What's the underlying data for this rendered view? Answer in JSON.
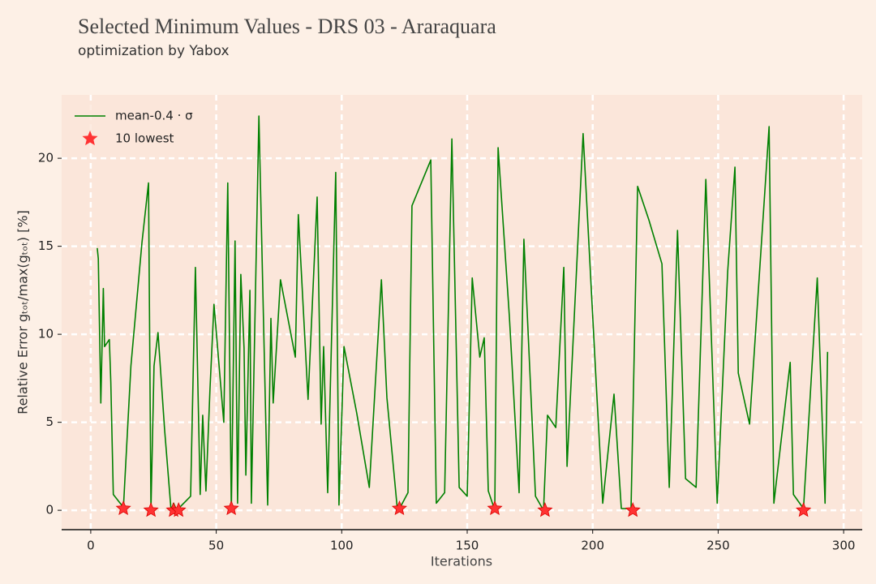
{
  "chart_data": {
    "type": "line",
    "title": "Selected Minimum Values - DRS 03 - Araraquara",
    "subtitle": "optimization by Yabox",
    "x_label": "Iterations",
    "y_label": "Relative Error gₜₒₜ/max(gₜₒₜ) [%]",
    "xlim": [
      -11.6,
      307.4
    ],
    "ylim": [
      -1.1,
      23.6
    ],
    "xticks": [
      0,
      50,
      100,
      150,
      200,
      250,
      300
    ],
    "yticks": [
      0,
      5,
      10,
      15,
      20
    ],
    "grid": true,
    "legend": "upper left",
    "series": [
      {
        "name": "mean-0.4 · σ",
        "type": "line",
        "color": "#008000",
        "x": [
          2.6,
          3,
          4,
          5,
          5.5,
          7.4,
          8,
          9,
          12.3,
          13,
          16,
          20.4,
          23,
          24,
          25.2,
          26.8,
          29.4,
          32,
          33,
          34.3,
          39.8,
          41.7,
          43.6,
          44.6,
          45.9,
          47.5,
          49.1,
          53,
          54.6,
          56,
          57.5,
          58.5,
          59.8,
          61.1,
          61.8,
          63.4,
          64,
          67,
          70.5,
          71.8,
          72.7,
          75.6,
          81.5,
          82.7,
          86.6,
          90.2,
          91.8,
          92.8,
          94.4,
          97.6,
          98.9,
          100.9,
          106,
          111,
          115.8,
          118,
          122.2,
          123.8,
          126.4,
          128,
          135.5,
          137.7,
          141,
          143.9,
          146.8,
          150,
          152,
          155,
          156.8,
          158.4,
          161,
          162.3,
          166.8,
          170.7,
          172.6,
          177.2,
          180.4,
          182,
          185.3,
          188.5,
          189.8,
          196.2,
          201.7,
          204,
          208.5,
          211.4,
          215.3,
          217.9,
          222.4,
          227.6,
          230.5,
          233.8,
          237,
          241.2,
          245.1,
          249.6,
          253.8,
          256.7,
          258,
          262.5,
          270.3,
          272.2,
          278.7,
          280,
          284,
          289.5,
          292.6,
          293.6
        ],
        "values": [
          14.9,
          14.3,
          6.1,
          12.6,
          9.3,
          9.7,
          7.3,
          0.9,
          0.3,
          0.1,
          8.2,
          15.2,
          18.6,
          0,
          8.2,
          10.1,
          4.6,
          0,
          0.4,
          0,
          0.8,
          13.8,
          0.9,
          5.4,
          1.1,
          6.9,
          11.7,
          5,
          18.6,
          0,
          15.3,
          0.4,
          13.4,
          9.2,
          2,
          12.5,
          0.4,
          22.4,
          0.3,
          10.9,
          6.1,
          13.1,
          8.7,
          16.8,
          6.3,
          17.8,
          4.9,
          9.3,
          1,
          19.2,
          0.3,
          9.3,
          5.5,
          1.3,
          13.1,
          6.4,
          0,
          0.3,
          1,
          17.3,
          19.9,
          0.4,
          1,
          21.1,
          1.3,
          0.8,
          13.2,
          8.7,
          9.8,
          1.1,
          0,
          20.6,
          11,
          1,
          15.4,
          0.8,
          0,
          5.4,
          4.7,
          13.8,
          2.5,
          21.4,
          6.4,
          0.4,
          6.6,
          0.1,
          0.1,
          18.4,
          16.5,
          14,
          1.3,
          15.9,
          1.8,
          1.3,
          18.8,
          0.4,
          13.6,
          19.5,
          7.8,
          4.9,
          21.8,
          0.4,
          8.4,
          0.9,
          0.1,
          13.2,
          0.4,
          9
        ]
      },
      {
        "name": "10 lowest",
        "type": "scatter",
        "marker": "star",
        "color": "#ff3333",
        "x": [
          13,
          24,
          33,
          35,
          56,
          123,
          161,
          181,
          216,
          284
        ],
        "values": [
          0.1,
          0,
          0,
          0,
          0.1,
          0.1,
          0.1,
          0,
          0,
          0
        ]
      }
    ]
  }
}
